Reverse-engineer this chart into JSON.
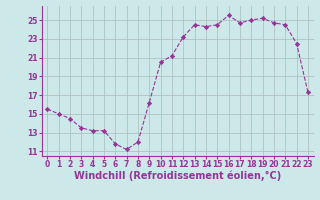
{
  "x": [
    0,
    1,
    2,
    3,
    4,
    5,
    6,
    7,
    8,
    9,
    10,
    11,
    12,
    13,
    14,
    15,
    16,
    17,
    18,
    19,
    20,
    21,
    22,
    23
  ],
  "y": [
    15.5,
    15.0,
    14.5,
    13.5,
    13.2,
    13.2,
    11.8,
    11.2,
    12.0,
    16.2,
    20.5,
    21.2,
    23.2,
    24.5,
    24.3,
    24.5,
    25.5,
    24.7,
    25.0,
    25.2,
    24.7,
    24.5,
    22.5,
    17.3
  ],
  "line_color": "#993399",
  "marker": "D",
  "marker_size": 2.2,
  "bg_color": "#cce8e8",
  "grid_color": "#aabbbb",
  "xlabel": "Windchill (Refroidissement éolien,°C)",
  "ylabel_ticks": [
    11,
    13,
    15,
    17,
    19,
    21,
    23,
    25
  ],
  "xlabel_ticks": [
    0,
    1,
    2,
    3,
    4,
    5,
    6,
    7,
    8,
    9,
    10,
    11,
    12,
    13,
    14,
    15,
    16,
    17,
    18,
    19,
    20,
    21,
    22,
    23
  ],
  "xlim": [
    -0.5,
    23.5
  ],
  "ylim": [
    10.5,
    26.5
  ],
  "tick_fontsize": 5.5,
  "xlabel_fontsize": 7
}
